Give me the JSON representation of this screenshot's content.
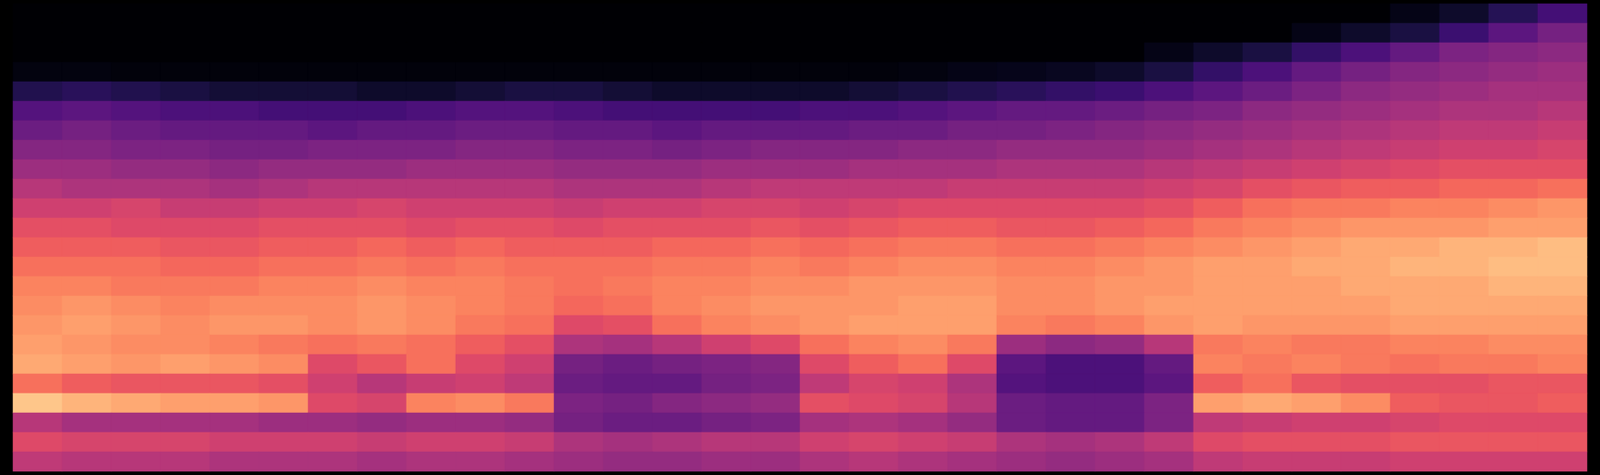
{
  "chart_data": {
    "type": "heatmap",
    "color": "magma",
    "tick_labels": false,
    "vlim": [
      0,
      100
    ],
    "values": [
      [
        0,
        0,
        0,
        0,
        0,
        0,
        0,
        0,
        0,
        0,
        0,
        0,
        0,
        0,
        0,
        0,
        0,
        0,
        0,
        0,
        0,
        0,
        0,
        0,
        0,
        0,
        0,
        0,
        4,
        8,
        15,
        22
      ],
      [
        0,
        0,
        0,
        0,
        0,
        0,
        0,
        0,
        0,
        0,
        0,
        0,
        0,
        0,
        0,
        0,
        0,
        0,
        0,
        0,
        0,
        0,
        0,
        0,
        0,
        0,
        4,
        8,
        12,
        20,
        28,
        34
      ],
      [
        0,
        0,
        0,
        0,
        0,
        0,
        0,
        0,
        0,
        0,
        0,
        0,
        0,
        0,
        0,
        0,
        0,
        0,
        0,
        0,
        0,
        0,
        0,
        4,
        8,
        12,
        18,
        24,
        30,
        36,
        38,
        40
      ],
      [
        3,
        3,
        2,
        2,
        2,
        2,
        2,
        2,
        2,
        2,
        2,
        2,
        2,
        2,
        2,
        2,
        2,
        2,
        3,
        4,
        5,
        6,
        8,
        12,
        18,
        24,
        30,
        34,
        38,
        40,
        42,
        44
      ],
      [
        14,
        16,
        14,
        12,
        10,
        10,
        10,
        8,
        8,
        10,
        12,
        12,
        10,
        8,
        8,
        8,
        8,
        10,
        12,
        14,
        16,
        18,
        20,
        24,
        28,
        32,
        36,
        40,
        42,
        44,
        46,
        46
      ],
      [
        26,
        28,
        26,
        24,
        24,
        22,
        22,
        22,
        24,
        26,
        26,
        24,
        22,
        22,
        22,
        22,
        24,
        24,
        26,
        28,
        30,
        30,
        32,
        34,
        36,
        40,
        42,
        44,
        46,
        48,
        48,
        50
      ],
      [
        32,
        34,
        32,
        30,
        30,
        30,
        28,
        30,
        30,
        32,
        32,
        30,
        30,
        28,
        30,
        30,
        30,
        32,
        32,
        34,
        34,
        36,
        38,
        40,
        42,
        44,
        46,
        48,
        50,
        52,
        52,
        54
      ],
      [
        38,
        38,
        36,
        36,
        34,
        34,
        36,
        36,
        36,
        38,
        38,
        36,
        36,
        34,
        36,
        38,
        38,
        38,
        40,
        40,
        42,
        42,
        42,
        44,
        46,
        48,
        50,
        52,
        54,
        56,
        56,
        58
      ],
      [
        44,
        44,
        42,
        42,
        40,
        42,
        42,
        42,
        44,
        44,
        44,
        42,
        42,
        42,
        44,
        44,
        44,
        46,
        46,
        46,
        48,
        48,
        48,
        50,
        52,
        54,
        56,
        58,
        60,
        62,
        62,
        62
      ],
      [
        50,
        48,
        48,
        48,
        46,
        48,
        50,
        50,
        50,
        50,
        50,
        48,
        48,
        48,
        50,
        52,
        52,
        52,
        52,
        54,
        54,
        54,
        54,
        56,
        58,
        62,
        64,
        66,
        66,
        68,
        68,
        70
      ],
      [
        56,
        56,
        58,
        54,
        54,
        56,
        56,
        58,
        56,
        56,
        56,
        54,
        56,
        56,
        58,
        58,
        56,
        58,
        60,
        60,
        60,
        60,
        60,
        62,
        66,
        70,
        72,
        72,
        74,
        74,
        76,
        78
      ],
      [
        62,
        62,
        60,
        60,
        60,
        62,
        62,
        62,
        60,
        62,
        62,
        60,
        62,
        62,
        62,
        64,
        62,
        64,
        66,
        66,
        64,
        64,
        66,
        68,
        72,
        74,
        76,
        78,
        78,
        78,
        80,
        80
      ],
      [
        66,
        66,
        66,
        64,
        64,
        66,
        66,
        68,
        66,
        68,
        66,
        66,
        66,
        68,
        68,
        70,
        68,
        70,
        72,
        72,
        70,
        70,
        72,
        74,
        76,
        78,
        80,
        82,
        82,
        84,
        84,
        86
      ],
      [
        70,
        70,
        70,
        68,
        68,
        70,
        70,
        72,
        70,
        72,
        70,
        70,
        70,
        72,
        72,
        74,
        72,
        74,
        76,
        76,
        74,
        74,
        76,
        78,
        80,
        80,
        82,
        82,
        84,
        84,
        86,
        86
      ],
      [
        74,
        74,
        72,
        72,
        72,
        74,
        74,
        76,
        74,
        74,
        72,
        70,
        72,
        74,
        74,
        76,
        76,
        78,
        78,
        78,
        76,
        76,
        78,
        78,
        80,
        80,
        80,
        82,
        82,
        82,
        84,
        84
      ],
      [
        76,
        78,
        76,
        74,
        76,
        76,
        76,
        78,
        76,
        74,
        72,
        68,
        70,
        74,
        76,
        78,
        78,
        78,
        80,
        80,
        76,
        76,
        78,
        80,
        80,
        80,
        80,
        80,
        82,
        82,
        82,
        82
      ],
      [
        78,
        80,
        78,
        76,
        78,
        78,
        76,
        78,
        76,
        72,
        70,
        60,
        62,
        70,
        74,
        76,
        78,
        80,
        80,
        80,
        74,
        72,
        74,
        78,
        80,
        78,
        78,
        78,
        80,
        80,
        80,
        80
      ],
      [
        80,
        78,
        76,
        76,
        74,
        72,
        70,
        72,
        70,
        66,
        62,
        48,
        46,
        50,
        56,
        60,
        70,
        74,
        76,
        72,
        44,
        40,
        42,
        50,
        72,
        74,
        72,
        72,
        74,
        74,
        76,
        76
      ],
      [
        82,
        80,
        78,
        80,
        78,
        76,
        60,
        64,
        70,
        60,
        56,
        34,
        32,
        34,
        36,
        38,
        60,
        66,
        70,
        60,
        28,
        24,
        24,
        30,
        74,
        72,
        74,
        72,
        70,
        72,
        72,
        74
      ],
      [
        70,
        66,
        64,
        64,
        64,
        62,
        56,
        50,
        54,
        56,
        52,
        32,
        30,
        30,
        34,
        36,
        52,
        58,
        56,
        48,
        26,
        24,
        24,
        28,
        66,
        70,
        64,
        62,
        62,
        62,
        64,
        64
      ],
      [
        88,
        84,
        82,
        80,
        80,
        78,
        60,
        58,
        74,
        76,
        72,
        36,
        34,
        38,
        40,
        42,
        62,
        60,
        58,
        50,
        32,
        30,
        30,
        36,
        80,
        82,
        80,
        76,
        66,
        64,
        64,
        66
      ],
      [
        50,
        46,
        46,
        46,
        46,
        44,
        44,
        42,
        44,
        44,
        42,
        34,
        32,
        32,
        34,
        36,
        46,
        48,
        46,
        42,
        32,
        30,
        30,
        36,
        52,
        54,
        56,
        56,
        58,
        60,
        60,
        60
      ],
      [
        60,
        58,
        58,
        58,
        56,
        56,
        56,
        54,
        56,
        56,
        54,
        48,
        46,
        48,
        50,
        50,
        56,
        58,
        56,
        54,
        48,
        46,
        48,
        52,
        60,
        62,
        62,
        62,
        64,
        64,
        64,
        64
      ],
      [
        52,
        50,
        50,
        50,
        48,
        48,
        48,
        46,
        48,
        48,
        46,
        44,
        42,
        42,
        44,
        44,
        48,
        50,
        48,
        46,
        44,
        42,
        44,
        46,
        52,
        54,
        54,
        54,
        56,
        56,
        56,
        56
      ]
    ]
  }
}
